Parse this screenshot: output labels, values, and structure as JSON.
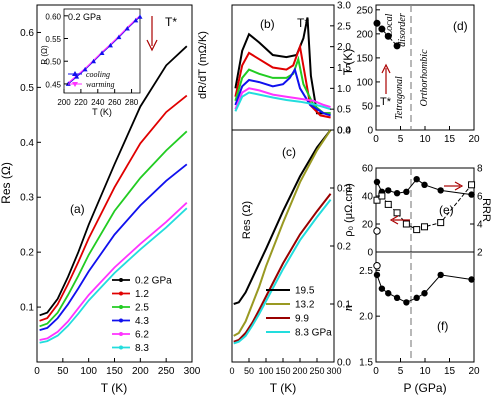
{
  "panels": {
    "a": {
      "label": "(a)",
      "xlabel": "T (K)",
      "ylabel": "Res (Ω)",
      "xticks": [
        "0",
        "50",
        "100",
        "150",
        "200",
        "250",
        "300"
      ],
      "yticks": [
        "0.1",
        "0.2",
        "0.3",
        "0.4",
        "0.5",
        "0.6"
      ],
      "annotation": "T*",
      "inset": {
        "title": "0.2 GPa",
        "xlabel": "T (K)",
        "ylabel": "R (Ω)",
        "xticks": [
          "200",
          "220",
          "240",
          "260",
          "280"
        ],
        "yticks": [
          "0.45",
          "0.50",
          "0.55",
          "0.60"
        ],
        "legend": [
          "cooling",
          "warming"
        ]
      }
    },
    "b": {
      "label": "(b)",
      "ylabel": "dR/dT  (mΩ/K)",
      "annotation": "T*",
      "yticks": [
        "0.0",
        "0.5",
        "1.0",
        "1.5",
        "2.0",
        "2.5",
        "3.0"
      ]
    },
    "c": {
      "label": "(c)",
      "xlabel": "T (K)",
      "ylabel": "Res (Ω)",
      "xticks": [
        "0",
        "50",
        "100",
        "150",
        "200",
        "250",
        "300"
      ],
      "yticks": [
        "0.0",
        "0.1",
        "0.2",
        "0.3",
        "0.4"
      ]
    },
    "d": {
      "label": "(d)",
      "ylabel": "T (K)",
      "region_local": "Local",
      "region_disorder": "disorder",
      "region_tetragonal": "Tetragonal",
      "region_ortho": "Orthorhombic",
      "annotation": "T*",
      "xticks": [
        "0",
        "5",
        "10",
        "15",
        "20"
      ],
      "yticks": [
        "0",
        "50",
        "100",
        "150",
        "200",
        "250"
      ]
    },
    "e": {
      "label": "(e)",
      "ylabel": "ρ₀ (μΩ.cm)",
      "ylabel_right": "RRR",
      "yticks": [
        "0",
        "20",
        "40",
        "60"
      ],
      "yticks_right": [
        "2",
        "4",
        "6",
        "8"
      ]
    },
    "f": {
      "label": "(f)",
      "ylabel": "n",
      "xlabel": "P (GPa)",
      "xticks": [
        "0",
        "5",
        "10",
        "15",
        "20"
      ],
      "yticks": [
        "1.5",
        "2.0",
        "2.5"
      ]
    }
  },
  "chart_data": [
    {
      "panel": "a",
      "type": "line",
      "xlabel": "T (K)",
      "ylabel": "Res (Ω)",
      "xlim": [
        0,
        300
      ],
      "ylim": [
        0,
        0.65
      ],
      "series": [
        {
          "name": "0.2 GPa",
          "color": "#000000",
          "x": [
            5,
            20,
            40,
            60,
            80,
            100,
            150,
            200,
            250,
            290
          ],
          "y": [
            0.085,
            0.09,
            0.115,
            0.155,
            0.2,
            0.25,
            0.36,
            0.465,
            0.54,
            0.575
          ]
        },
        {
          "name": "1.2",
          "color": "#e00000",
          "x": [
            5,
            20,
            40,
            60,
            80,
            100,
            150,
            200,
            250,
            290
          ],
          "y": [
            0.075,
            0.08,
            0.105,
            0.142,
            0.182,
            0.225,
            0.318,
            0.398,
            0.455,
            0.485
          ]
        },
        {
          "name": "2.5",
          "color": "#22cc22",
          "x": [
            5,
            20,
            40,
            60,
            80,
            100,
            150,
            200,
            250,
            290
          ],
          "y": [
            0.065,
            0.07,
            0.09,
            0.122,
            0.157,
            0.195,
            0.275,
            0.335,
            0.385,
            0.42
          ]
        },
        {
          "name": "4.3",
          "color": "#1010ee",
          "x": [
            5,
            20,
            40,
            60,
            80,
            100,
            150,
            200,
            250,
            290
          ],
          "y": [
            0.058,
            0.062,
            0.08,
            0.105,
            0.134,
            0.165,
            0.232,
            0.285,
            0.33,
            0.36
          ]
        },
        {
          "name": "6.2",
          "color": "#ff33ff",
          "x": [
            5,
            20,
            40,
            60,
            80,
            100,
            150,
            200,
            250,
            290
          ],
          "y": [
            0.04,
            0.043,
            0.055,
            0.074,
            0.098,
            0.122,
            0.172,
            0.215,
            0.255,
            0.29
          ]
        },
        {
          "name": "8.3",
          "color": "#22dddd",
          "x": [
            5,
            20,
            40,
            60,
            80,
            100,
            150,
            200,
            250,
            290
          ],
          "y": [
            0.035,
            0.038,
            0.048,
            0.066,
            0.088,
            0.112,
            0.162,
            0.205,
            0.245,
            0.28
          ]
        }
      ]
    },
    {
      "panel": "a-inset",
      "type": "line",
      "title": "0.2 GPa",
      "xlabel": "T (K)",
      "ylabel": "R (Ω)",
      "xlim": [
        200,
        290
      ],
      "ylim": [
        0.43,
        0.615
      ],
      "series": [
        {
          "name": "cooling",
          "color": "#1010ee",
          "x": [
            205,
            215,
            225,
            235,
            245,
            255,
            265,
            275,
            285,
            290
          ],
          "y": [
            0.45,
            0.466,
            0.482,
            0.5,
            0.518,
            0.535,
            0.553,
            0.572,
            0.59,
            0.598
          ]
        },
        {
          "name": "warming",
          "color": "#ff33ff",
          "x": [
            205,
            215,
            225,
            235,
            245,
            255,
            265,
            275,
            285,
            290
          ],
          "y": [
            0.452,
            0.468,
            0.484,
            0.502,
            0.52,
            0.537,
            0.555,
            0.574,
            0.592,
            0.6
          ]
        }
      ]
    },
    {
      "panel": "b",
      "type": "line",
      "ylabel": "dR/dT  (mΩ/K)",
      "xlim": [
        0,
        300
      ],
      "ylim": [
        0,
        3.0
      ],
      "series": [
        {
          "name": "0.2 GPa",
          "color": "#000000",
          "x": [
            10,
            30,
            50,
            80,
            120,
            160,
            190,
            210,
            222,
            232,
            250,
            290
          ],
          "y": [
            1.0,
            1.9,
            2.3,
            2.1,
            1.8,
            1.75,
            1.8,
            2.2,
            2.7,
            1.3,
            0.4,
            0.4
          ]
        },
        {
          "name": "1.2",
          "color": "#e00000",
          "x": [
            10,
            30,
            50,
            80,
            120,
            160,
            180,
            200,
            215,
            230,
            260,
            290
          ],
          "y": [
            0.8,
            1.55,
            1.85,
            1.7,
            1.5,
            1.45,
            1.55,
            2.0,
            1.3,
            0.6,
            0.35,
            0.3
          ]
        },
        {
          "name": "2.5",
          "color": "#22cc22",
          "x": [
            10,
            30,
            50,
            80,
            120,
            160,
            180,
            195,
            210,
            240,
            270,
            290
          ],
          "y": [
            0.7,
            1.25,
            1.45,
            1.35,
            1.25,
            1.25,
            1.35,
            1.7,
            1.1,
            0.6,
            0.4,
            0.4
          ]
        },
        {
          "name": "4.3",
          "color": "#1010ee",
          "x": [
            10,
            30,
            50,
            80,
            120,
            150,
            170,
            185,
            200,
            230,
            270,
            290
          ],
          "y": [
            0.6,
            1.05,
            1.2,
            1.15,
            1.05,
            1.1,
            1.25,
            1.45,
            1.0,
            0.6,
            0.4,
            0.35
          ]
        },
        {
          "name": "6.2",
          "color": "#ff33ff",
          "x": [
            10,
            30,
            50,
            80,
            120,
            160,
            200,
            240,
            270,
            290
          ],
          "y": [
            0.5,
            0.9,
            1.0,
            0.95,
            0.85,
            0.8,
            0.75,
            0.7,
            0.6,
            0.55
          ]
        },
        {
          "name": "8.3",
          "color": "#22dddd",
          "x": [
            10,
            30,
            50,
            80,
            120,
            160,
            200,
            240,
            270,
            290
          ],
          "y": [
            0.45,
            0.8,
            0.9,
            0.85,
            0.78,
            0.72,
            0.68,
            0.62,
            0.55,
            0.5
          ]
        }
      ]
    },
    {
      "panel": "c",
      "type": "line",
      "xlabel": "T (K)",
      "ylabel": "Res (Ω)",
      "xlim": [
        0,
        300
      ],
      "ylim": [
        0,
        0.4
      ],
      "series": [
        {
          "name": "19.5",
          "color": "#000000",
          "x": [
            5,
            20,
            40,
            60,
            80,
            100,
            150,
            200,
            250,
            290
          ],
          "y": [
            0.1,
            0.103,
            0.12,
            0.145,
            0.17,
            0.195,
            0.26,
            0.32,
            0.37,
            0.4
          ]
        },
        {
          "name": "13.2",
          "color": "#999922",
          "x": [
            5,
            20,
            40,
            60,
            80,
            100,
            150,
            200,
            250,
            290
          ],
          "y": [
            0.045,
            0.05,
            0.07,
            0.1,
            0.13,
            0.165,
            0.24,
            0.31,
            0.365,
            0.4
          ]
        },
        {
          "name": "9.9",
          "color": "#990000",
          "x": [
            5,
            20,
            40,
            60,
            80,
            100,
            150,
            200,
            250,
            290
          ],
          "y": [
            0.035,
            0.038,
            0.05,
            0.068,
            0.09,
            0.113,
            0.17,
            0.22,
            0.26,
            0.29
          ]
        },
        {
          "name": "8.3 GPa",
          "color": "#22dddd",
          "x": [
            5,
            20,
            40,
            60,
            80,
            100,
            150,
            200,
            250,
            290
          ],
          "y": [
            0.032,
            0.035,
            0.045,
            0.063,
            0.083,
            0.105,
            0.16,
            0.21,
            0.25,
            0.28
          ]
        }
      ]
    },
    {
      "panel": "d",
      "type": "scatter",
      "ylabel": "T (K)",
      "xlim": [
        0,
        20
      ],
      "ylim": [
        0,
        260
      ],
      "series": [
        {
          "name": "T*",
          "color": "#000000",
          "x": [
            0.2,
            1.2,
            2.5,
            4.3
          ],
          "y": [
            222,
            210,
            195,
            175
          ]
        }
      ]
    },
    {
      "panel": "e",
      "type": "scatter",
      "ylabel": "ρ₀ (μΩ.cm)",
      "ylabel_right": "RRR",
      "xlim": [
        0,
        20
      ],
      "series": [
        {
          "name": "ρ₀ filled",
          "color": "#000000",
          "axis": "left",
          "ylim": [
            0,
            60
          ],
          "x": [
            0.2,
            1.2,
            2.5,
            4.3,
            6.2,
            8.3,
            9.9,
            13.2,
            19.5
          ],
          "y": [
            50,
            43,
            44,
            42,
            43,
            52,
            48,
            44,
            41
          ]
        },
        {
          "name": "ρ₀ open",
          "color": "#000000",
          "axis": "left",
          "ylim": [
            0,
            60
          ],
          "x": [
            0.2
          ],
          "y": [
            15
          ]
        },
        {
          "name": "RRR",
          "color": "#000000",
          "axis": "right",
          "ylim": [
            2,
            8
          ],
          "x": [
            0.2,
            1.2,
            2.5,
            4.3,
            6.2,
            8.3,
            9.9,
            13.2,
            19.5
          ],
          "y": [
            5.7,
            6.0,
            5.4,
            4.8,
            4.0,
            3.6,
            3.8,
            4.1,
            6.8
          ]
        }
      ]
    },
    {
      "panel": "f",
      "type": "scatter",
      "ylabel": "n",
      "xlabel": "P (GPa)",
      "xlim": [
        0,
        20
      ],
      "ylim": [
        1.5,
        2.7
      ],
      "series": [
        {
          "name": "n filled",
          "color": "#000000",
          "x": [
            0.2,
            1.2,
            2.5,
            4.3,
            6.2,
            8.3,
            9.9,
            13.2,
            19.5
          ],
          "y": [
            2.45,
            2.3,
            2.25,
            2.2,
            2.15,
            2.2,
            2.25,
            2.45,
            2.4
          ]
        },
        {
          "name": "n open",
          "color": "#000000",
          "x": [
            0.2
          ],
          "y": [
            2.55
          ]
        }
      ]
    }
  ]
}
